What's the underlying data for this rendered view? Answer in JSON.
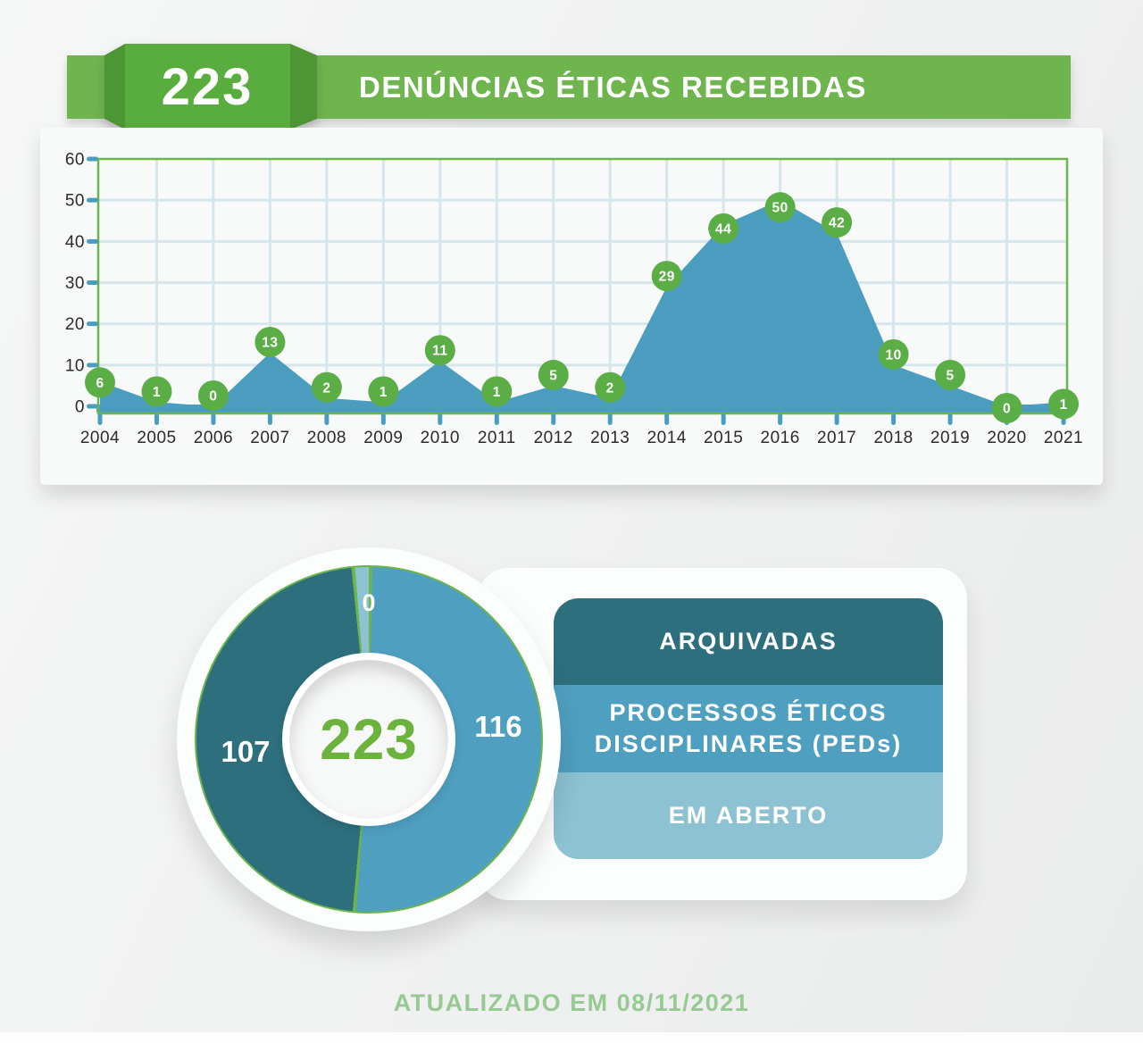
{
  "header": {
    "badge_value": "223",
    "title": "DENÚNCIAS ÉTICAS RECEBIDAS",
    "banner_color": "#6eb54e",
    "badge_color": "#59ac3e",
    "badge_fold_color": "#4c9733"
  },
  "chart_data": [
    {
      "type": "area",
      "x": [
        "2004",
        "2005",
        "2006",
        "2007",
        "2008",
        "2009",
        "2010",
        "2011",
        "2012",
        "2013",
        "2014",
        "2015",
        "2016",
        "2017",
        "2018",
        "2019",
        "2020",
        "2021"
      ],
      "values": [
        6,
        1,
        0,
        13,
        2,
        1,
        11,
        1,
        5,
        2,
        29,
        44,
        50,
        42,
        10,
        5,
        0,
        1
      ],
      "ylim": [
        0,
        60
      ],
      "yticks": [
        0,
        10,
        20,
        30,
        40,
        50,
        60
      ],
      "grid": true,
      "legend_position": "none",
      "area_color": "#4a9dbe",
      "marker_color": "#5bad46",
      "marker_text_color": "#ffffff",
      "border_color": "#6cb44c",
      "grid_color": "#d5e6ed",
      "axis_text_color": "#2b2b2b"
    },
    {
      "type": "pie",
      "center_label": "223",
      "divider_color": "#6cb44c",
      "slices": [
        {
          "label": "ARQUIVADAS",
          "value": 107,
          "color": "#2e6f7d"
        },
        {
          "label": "PROCESSOS ÉTICOS DISCIPLINARES (PEDs)",
          "value": 116,
          "color": "#4f9fc0"
        },
        {
          "label": "EM ABERTO",
          "value": 0,
          "color": "#8cc2d2"
        }
      ]
    }
  ],
  "footer": {
    "updated_text": "ATUALIZADO EM 08/11/2021"
  }
}
